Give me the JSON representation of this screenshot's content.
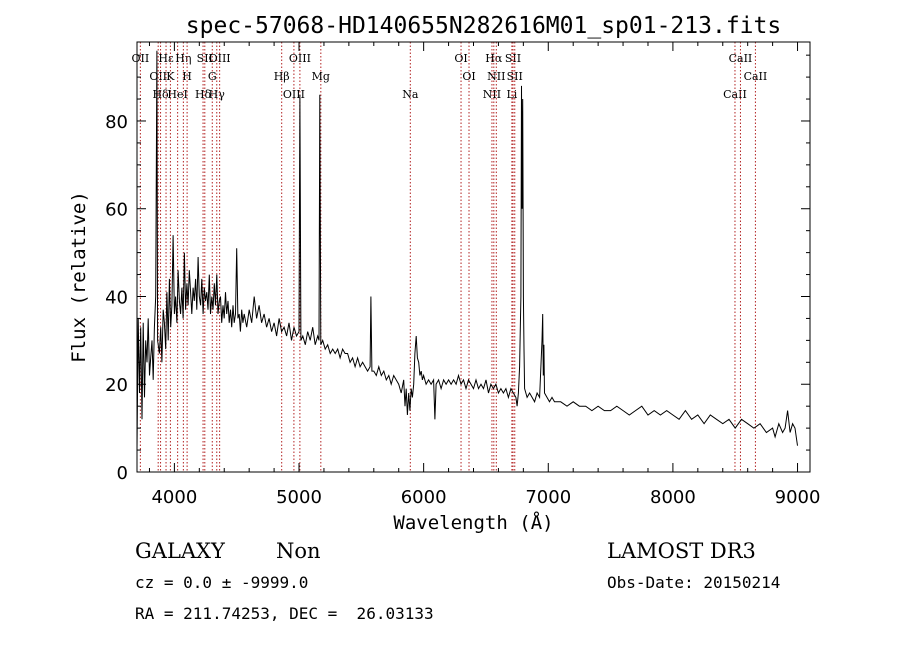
{
  "chart_data": {
    "type": "line",
    "title": "spec-57068-HD140655N282616M01_sp01-213.fits",
    "xlabel": "Wavelength (Å)",
    "ylabel": "Flux (relative)",
    "xlim": [
      3700,
      9100
    ],
    "ylim": [
      0,
      98
    ],
    "xticks": [
      4000,
      5000,
      6000,
      7000,
      8000,
      9000
    ],
    "yticks": [
      0,
      20,
      40,
      60,
      80
    ],
    "line_color": "#000000",
    "marker_color": "#b22222",
    "spectrum": [
      [
        3700,
        5
      ],
      [
        3710,
        35
      ],
      [
        3720,
        18
      ],
      [
        3730,
        33
      ],
      [
        3740,
        12
      ],
      [
        3750,
        34
      ],
      [
        3760,
        17
      ],
      [
        3770,
        30
      ],
      [
        3780,
        25
      ],
      [
        3790,
        35
      ],
      [
        3800,
        22
      ],
      [
        3810,
        26
      ],
      [
        3820,
        30
      ],
      [
        3830,
        21
      ],
      [
        3840,
        33
      ],
      [
        3850,
        40
      ],
      [
        3860,
        96
      ],
      [
        3865,
        30
      ],
      [
        3880,
        27
      ],
      [
        3890,
        33
      ],
      [
        3900,
        25
      ],
      [
        3910,
        37
      ],
      [
        3920,
        34
      ],
      [
        3930,
        28
      ],
      [
        3940,
        41
      ],
      [
        3950,
        30
      ],
      [
        3960,
        44
      ],
      [
        3970,
        33
      ],
      [
        3980,
        38
      ],
      [
        3990,
        54
      ],
      [
        4000,
        36
      ],
      [
        4010,
        40
      ],
      [
        4020,
        34
      ],
      [
        4030,
        46
      ],
      [
        4040,
        39
      ],
      [
        4050,
        36
      ],
      [
        4060,
        42
      ],
      [
        4070,
        35
      ],
      [
        4080,
        50
      ],
      [
        4090,
        37
      ],
      [
        4100,
        43
      ],
      [
        4110,
        38
      ],
      [
        4120,
        46
      ],
      [
        4130,
        41
      ],
      [
        4140,
        36
      ],
      [
        4150,
        42
      ],
      [
        4160,
        39
      ],
      [
        4170,
        44
      ],
      [
        4180,
        37
      ],
      [
        4190,
        49
      ],
      [
        4200,
        40
      ],
      [
        4210,
        38
      ],
      [
        4220,
        44
      ],
      [
        4230,
        36
      ],
      [
        4240,
        42
      ],
      [
        4250,
        39
      ],
      [
        4260,
        41
      ],
      [
        4270,
        37
      ],
      [
        4280,
        45
      ],
      [
        4290,
        36
      ],
      [
        4300,
        40
      ],
      [
        4310,
        37
      ],
      [
        4320,
        43
      ],
      [
        4330,
        38
      ],
      [
        4340,
        45
      ],
      [
        4350,
        36
      ],
      [
        4360,
        39
      ],
      [
        4370,
        40
      ],
      [
        4380,
        34
      ],
      [
        4390,
        38
      ],
      [
        4400,
        35
      ],
      [
        4410,
        41
      ],
      [
        4420,
        36
      ],
      [
        4430,
        39
      ],
      [
        4440,
        34
      ],
      [
        4450,
        37
      ],
      [
        4460,
        33
      ],
      [
        4470,
        38
      ],
      [
        4480,
        34
      ],
      [
        4490,
        36
      ],
      [
        4500,
        51
      ],
      [
        4510,
        35
      ],
      [
        4520,
        36
      ],
      [
        4530,
        32
      ],
      [
        4540,
        37
      ],
      [
        4550,
        34
      ],
      [
        4560,
        36
      ],
      [
        4580,
        33
      ],
      [
        4600,
        37
      ],
      [
        4620,
        34
      ],
      [
        4640,
        40
      ],
      [
        4660,
        35
      ],
      [
        4680,
        38
      ],
      [
        4700,
        34
      ],
      [
        4720,
        36
      ],
      [
        4740,
        33
      ],
      [
        4760,
        35
      ],
      [
        4780,
        32
      ],
      [
        4800,
        34
      ],
      [
        4820,
        31
      ],
      [
        4840,
        35
      ],
      [
        4860,
        32
      ],
      [
        4880,
        33
      ],
      [
        4900,
        31
      ],
      [
        4920,
        34
      ],
      [
        4940,
        30
      ],
      [
        4960,
        33
      ],
      [
        4980,
        31
      ],
      [
        5000,
        32
      ],
      [
        5007,
        86
      ],
      [
        5015,
        30
      ],
      [
        5030,
        31
      ],
      [
        5050,
        29
      ],
      [
        5070,
        32
      ],
      [
        5090,
        30
      ],
      [
        5110,
        33
      ],
      [
        5130,
        29
      ],
      [
        5150,
        31
      ],
      [
        5160,
        30
      ],
      [
        5167,
        86
      ],
      [
        5175,
        29
      ],
      [
        5190,
        30
      ],
      [
        5210,
        28
      ],
      [
        5230,
        29
      ],
      [
        5250,
        27
      ],
      [
        5270,
        28
      ],
      [
        5290,
        27
      ],
      [
        5310,
        28
      ],
      [
        5330,
        26
      ],
      [
        5350,
        28
      ],
      [
        5370,
        27
      ],
      [
        5390,
        27
      ],
      [
        5410,
        25
      ],
      [
        5430,
        26
      ],
      [
        5450,
        24
      ],
      [
        5470,
        26
      ],
      [
        5490,
        24
      ],
      [
        5510,
        25
      ],
      [
        5530,
        24
      ],
      [
        5550,
        23
      ],
      [
        5570,
        24
      ],
      [
        5577,
        40
      ],
      [
        5585,
        23
      ],
      [
        5600,
        23
      ],
      [
        5620,
        22
      ],
      [
        5640,
        24
      ],
      [
        5660,
        22
      ],
      [
        5680,
        23
      ],
      [
        5700,
        21
      ],
      [
        5720,
        22
      ],
      [
        5740,
        20
      ],
      [
        5760,
        22
      ],
      [
        5780,
        21
      ],
      [
        5800,
        20
      ],
      [
        5820,
        18
      ],
      [
        5840,
        21
      ],
      [
        5850,
        15
      ],
      [
        5860,
        19
      ],
      [
        5870,
        13
      ],
      [
        5880,
        18
      ],
      [
        5890,
        14
      ],
      [
        5900,
        19
      ],
      [
        5910,
        17
      ],
      [
        5920,
        20
      ],
      [
        5930,
        27
      ],
      [
        5940,
        31
      ],
      [
        5950,
        26
      ],
      [
        5960,
        25
      ],
      [
        5970,
        22
      ],
      [
        5980,
        23
      ],
      [
        5990,
        21
      ],
      [
        6000,
        22
      ],
      [
        6020,
        20
      ],
      [
        6040,
        21
      ],
      [
        6060,
        20
      ],
      [
        6080,
        21
      ],
      [
        6090,
        12
      ],
      [
        6100,
        20
      ],
      [
        6120,
        21
      ],
      [
        6140,
        19
      ],
      [
        6160,
        21
      ],
      [
        6180,
        20
      ],
      [
        6200,
        21
      ],
      [
        6220,
        20
      ],
      [
        6240,
        21
      ],
      [
        6260,
        20
      ],
      [
        6280,
        22
      ],
      [
        6300,
        20
      ],
      [
        6320,
        21
      ],
      [
        6340,
        19
      ],
      [
        6360,
        21
      ],
      [
        6380,
        20
      ],
      [
        6400,
        19
      ],
      [
        6420,
        21
      ],
      [
        6440,
        19
      ],
      [
        6460,
        20
      ],
      [
        6480,
        19
      ],
      [
        6500,
        21
      ],
      [
        6520,
        18
      ],
      [
        6540,
        20
      ],
      [
        6560,
        19
      ],
      [
        6580,
        20
      ],
      [
        6600,
        18
      ],
      [
        6620,
        19
      ],
      [
        6640,
        18
      ],
      [
        6660,
        19
      ],
      [
        6680,
        17
      ],
      [
        6700,
        19
      ],
      [
        6720,
        18
      ],
      [
        6740,
        17
      ],
      [
        6750,
        15
      ],
      [
        6760,
        18
      ],
      [
        6770,
        24
      ],
      [
        6780,
        40
      ],
      [
        6785,
        88
      ],
      [
        6790,
        60
      ],
      [
        6795,
        85
      ],
      [
        6800,
        40
      ],
      [
        6805,
        28
      ],
      [
        6810,
        19
      ],
      [
        6830,
        17
      ],
      [
        6850,
        18
      ],
      [
        6870,
        17
      ],
      [
        6890,
        16
      ],
      [
        6910,
        18
      ],
      [
        6930,
        17
      ],
      [
        6950,
        30
      ],
      [
        6955,
        36
      ],
      [
        6960,
        22
      ],
      [
        6965,
        29
      ],
      [
        6970,
        18
      ],
      [
        6990,
        17
      ],
      [
        7010,
        16
      ],
      [
        7030,
        17
      ],
      [
        7050,
        16
      ],
      [
        7100,
        16
      ],
      [
        7150,
        15
      ],
      [
        7200,
        16
      ],
      [
        7250,
        15
      ],
      [
        7300,
        15
      ],
      [
        7350,
        14
      ],
      [
        7400,
        15
      ],
      [
        7450,
        14
      ],
      [
        7500,
        14
      ],
      [
        7550,
        15
      ],
      [
        7600,
        14
      ],
      [
        7650,
        13
      ],
      [
        7700,
        14
      ],
      [
        7750,
        15
      ],
      [
        7800,
        13
      ],
      [
        7850,
        14
      ],
      [
        7900,
        13
      ],
      [
        7950,
        14
      ],
      [
        8000,
        13
      ],
      [
        8050,
        12
      ],
      [
        8100,
        14
      ],
      [
        8150,
        12
      ],
      [
        8200,
        13
      ],
      [
        8250,
        11
      ],
      [
        8300,
        13
      ],
      [
        8350,
        12
      ],
      [
        8400,
        11
      ],
      [
        8450,
        12
      ],
      [
        8500,
        10
      ],
      [
        8550,
        12
      ],
      [
        8600,
        11
      ],
      [
        8650,
        10
      ],
      [
        8700,
        11
      ],
      [
        8750,
        9
      ],
      [
        8800,
        10
      ],
      [
        8820,
        8
      ],
      [
        8850,
        11
      ],
      [
        8880,
        9
      ],
      [
        8900,
        10
      ],
      [
        8920,
        14
      ],
      [
        8940,
        9
      ],
      [
        8960,
        11
      ],
      [
        8980,
        10
      ],
      [
        9000,
        6
      ]
    ],
    "lines": [
      {
        "wl": 3727,
        "label": "OII"
      },
      {
        "wl": 3870,
        "label": "OII"
      },
      {
        "wl": 3889,
        "label": "Hδ"
      },
      {
        "wl": 3933,
        "label": "Hε"
      },
      {
        "wl": 3968,
        "label": "K"
      },
      {
        "wl": 4026,
        "label": "HeI"
      },
      {
        "wl": 4072,
        "label": "Hη"
      },
      {
        "wl": 4102,
        "label": "H"
      },
      {
        "wl": 4230,
        "label": "Hδ"
      },
      {
        "wl": 4244,
        "label": "SII"
      },
      {
        "wl": 4304,
        "label": "G"
      },
      {
        "wl": 4340,
        "label": "Hγ"
      },
      {
        "wl": 4363,
        "label": "OIII"
      },
      {
        "wl": 4861,
        "label": "Hβ"
      },
      {
        "wl": 4959,
        "label": "OIII"
      },
      {
        "wl": 5007,
        "label": "OIII"
      },
      {
        "wl": 5175,
        "label": "Mg"
      },
      {
        "wl": 5893,
        "label": "Na"
      },
      {
        "wl": 6300,
        "label": "OI"
      },
      {
        "wl": 6364,
        "label": "OI"
      },
      {
        "wl": 6548,
        "label": "NII"
      },
      {
        "wl": 6563,
        "label": "Hα"
      },
      {
        "wl": 6583,
        "label": "NII"
      },
      {
        "wl": 6708,
        "label": "Li"
      },
      {
        "wl": 6717,
        "label": "SII"
      },
      {
        "wl": 6731,
        "label": "SII"
      },
      {
        "wl": 8498,
        "label": "CaII"
      },
      {
        "wl": 8542,
        "label": "CaII"
      },
      {
        "wl": 8662,
        "label": "CaII"
      }
    ]
  },
  "info": {
    "class": "GALAXY",
    "subclass": "Non",
    "survey": "LAMOST DR3",
    "cz": "cz = 0.0 ± -9999.0",
    "obs_date": "Obs-Date: 20150214",
    "coords": "RA = 211.74253, DEC =  26.03133"
  }
}
